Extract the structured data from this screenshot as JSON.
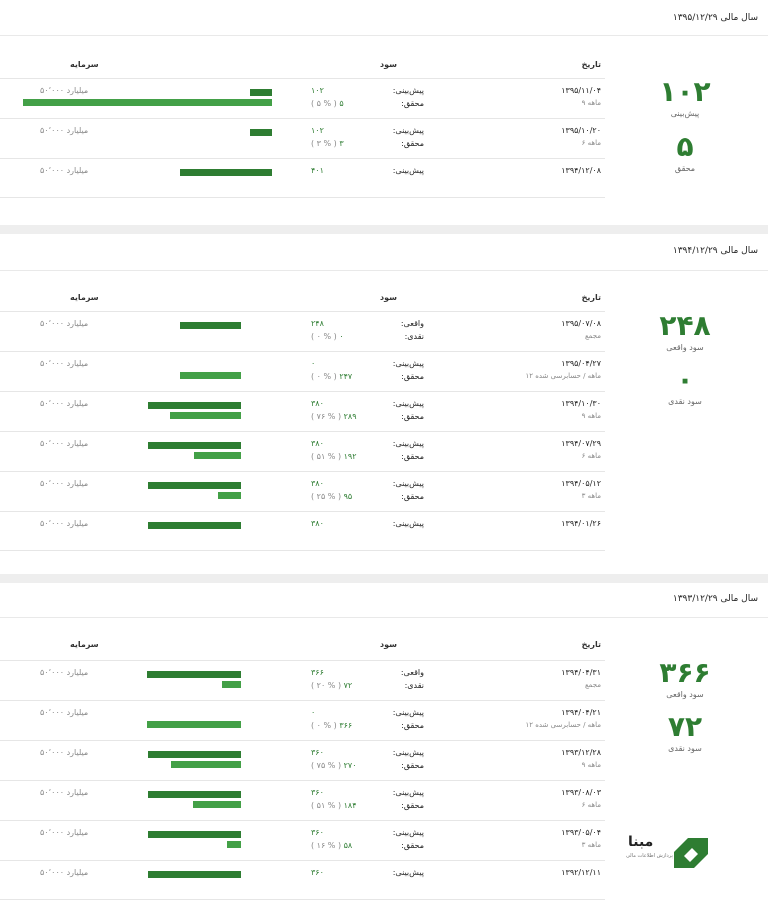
{
  "colors": {
    "accent": "#2e7d32",
    "accent_light": "#43a047"
  },
  "sections": [
    {
      "title": "سال مالی ۱۳۹۵/۱۲/۲۹",
      "summary": [
        {
          "value": "۱۰۲",
          "label": "پیش‌بینی"
        },
        {
          "value": "۵",
          "label": "محقق"
        }
      ],
      "headers": {
        "date": "تاریخ",
        "profit": "سود",
        "capital": "سرمایه"
      },
      "rows": [
        {
          "date": "۱۳۹۵/۱۱/۰۴",
          "sub": "۹ ماهه",
          "l1": "پیش‌بینی:",
          "v1": "۱۰۲",
          "l2": "محقق:",
          "v2": "۵",
          "pct": "( ۵ % )",
          "capital": "۵۰٬۰۰۰ میلیارد"
        },
        {
          "date": "۱۳۹۵/۱۰/۲۰",
          "sub": "۶ ماهه",
          "l1": "پیش‌بینی:",
          "v1": "۱۰۲",
          "l2": "محقق:",
          "v2": "۳",
          "pct": "( ۳ % )",
          "capital": "۵۰٬۰۰۰ میلیارد"
        },
        {
          "date": "۱۳۹۴/۱۲/۰۸",
          "sub": "",
          "l1": "پیش‌بینی:",
          "v1": "۴۰۱",
          "l2": "",
          "v2": "",
          "pct": "",
          "capital": "۵۰٬۰۰۰ میلیارد"
        }
      ]
    },
    {
      "title": "سال مالی ۱۳۹۴/۱۲/۲۹",
      "summary": [
        {
          "value": "۲۴۸",
          "label": "سود واقعی"
        },
        {
          "value": "۰",
          "label": "سود نقدی"
        }
      ],
      "headers": {
        "date": "تاریخ",
        "profit": "سود",
        "capital": "سرمایه"
      },
      "rows": [
        {
          "date": "۱۳۹۵/۰۷/۰۸",
          "sub": "مجمع",
          "l1": "واقعی:",
          "v1": "۲۴۸",
          "l2": "نقدی:",
          "v2": "۰",
          "pct": "( ۰ % )",
          "capital": "۵۰٬۰۰۰ میلیارد"
        },
        {
          "date": "۱۳۹۵/۰۴/۲۷",
          "sub": "۱۲ ماهه / حسابرسی شده",
          "l1": "پیش‌بینی:",
          "v1": "۰",
          "l2": "محقق:",
          "v2": "۲۴۷",
          "pct": "( ۰ % )",
          "capital": "۵۰٬۰۰۰ میلیارد"
        },
        {
          "date": "۱۳۹۴/۱۰/۳۰",
          "sub": "۹ ماهه",
          "l1": "پیش‌بینی:",
          "v1": "۳۸۰",
          "l2": "محقق:",
          "v2": "۲۸۹",
          "pct": "( ۷۶ % )",
          "capital": "۵۰٬۰۰۰ میلیارد"
        },
        {
          "date": "۱۳۹۴/۰۷/۲۹",
          "sub": "۶ ماهه",
          "l1": "پیش‌بینی:",
          "v1": "۳۸۰",
          "l2": "محقق:",
          "v2": "۱۹۲",
          "pct": "( ۵۱ % )",
          "capital": "۵۰٬۰۰۰ میلیارد"
        },
        {
          "date": "۱۳۹۴/۰۵/۱۲",
          "sub": "۳ ماهه",
          "l1": "پیش‌بینی:",
          "v1": "۳۸۰",
          "l2": "محقق:",
          "v2": "۹۵",
          "pct": "( ۲۵ % )",
          "capital": "۵۰٬۰۰۰ میلیارد"
        },
        {
          "date": "۱۳۹۴/۰۱/۲۶",
          "sub": "",
          "l1": "پیش‌بینی:",
          "v1": "۳۸۰",
          "l2": "",
          "v2": "",
          "pct": "",
          "capital": "۵۰٬۰۰۰ میلیارد"
        }
      ]
    },
    {
      "title": "سال مالی ۱۳۹۳/۱۲/۲۹",
      "summary": [
        {
          "value": "۳۶۶",
          "label": "سود واقعی"
        },
        {
          "value": "۷۲",
          "label": "سود نقدی"
        }
      ],
      "headers": {
        "date": "تاریخ",
        "profit": "سود",
        "capital": "سرمایه"
      },
      "rows": [
        {
          "date": "۱۳۹۴/۰۴/۳۱",
          "sub": "مجمع",
          "l1": "واقعی:",
          "v1": "۳۶۶",
          "l2": "نقدی:",
          "v2": "۷۲",
          "pct": "( ۲۰ % )",
          "capital": "۵۰٬۰۰۰ میلیارد"
        },
        {
          "date": "۱۳۹۴/۰۴/۲۱",
          "sub": "۱۲ ماهه / حسابرسی شده",
          "l1": "پیش‌بینی:",
          "v1": "۰",
          "l2": "محقق:",
          "v2": "۳۶۶",
          "pct": "( ۰ % )",
          "capital": "۵۰٬۰۰۰ میلیارد"
        },
        {
          "date": "۱۳۹۳/۱۲/۲۸",
          "sub": "۹ ماهه",
          "l1": "پیش‌بینی:",
          "v1": "۳۶۰",
          "l2": "محقق:",
          "v2": "۲۷۰",
          "pct": "( ۷۵ % )",
          "capital": "۵۰٬۰۰۰ میلیارد"
        },
        {
          "date": "۱۳۹۳/۰۸/۰۳",
          "sub": "۶ ماهه",
          "l1": "پیش‌بینی:",
          "v1": "۳۶۰",
          "l2": "محقق:",
          "v2": "۱۸۴",
          "pct": "( ۵۱ % )",
          "capital": "۵۰٬۰۰۰ میلیارد"
        },
        {
          "date": "۱۳۹۳/۰۵/۰۴",
          "sub": "۳ ماهه",
          "l1": "پیش‌بینی:",
          "v1": "۳۶۰",
          "l2": "محقق:",
          "v2": "۵۸",
          "pct": "( ۱۶ % )",
          "capital": "۵۰٬۰۰۰ میلیارد"
        },
        {
          "date": "۱۳۹۲/۱۲/۱۱",
          "sub": "",
          "l1": "پیش‌بینی:",
          "v1": "۳۶۰",
          "l2": "",
          "v2": "",
          "pct": "",
          "capital": "۵۰٬۰۰۰ میلیارد"
        }
      ]
    }
  ],
  "logo": {
    "name": "مبنا",
    "tagline": "پردازش اطلاعات مالی",
    "icon": "mabna-logo-icon"
  }
}
